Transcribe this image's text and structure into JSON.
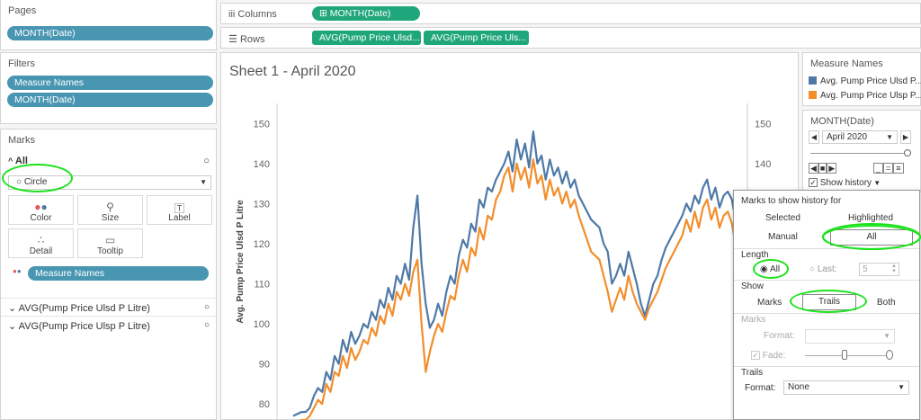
{
  "pages": {
    "title": "Pages",
    "pill": "MONTH(Date)"
  },
  "filters": {
    "title": "Filters",
    "pills": [
      "Measure Names",
      "MONTH(Date)"
    ]
  },
  "marks": {
    "title": "Marks",
    "all_label": "All",
    "type": "Circle",
    "cards": [
      {
        "label": "Color",
        "icon": "color-icon"
      },
      {
        "label": "Size",
        "icon": "size-icon"
      },
      {
        "label": "Label",
        "icon": "label-icon"
      },
      {
        "label": "Detail",
        "icon": "detail-icon"
      },
      {
        "label": "Tooltip",
        "icon": "tooltip-icon"
      }
    ],
    "color_pill": "Measure Names",
    "measures": [
      "AVG(Pump Price Ulsd P Litre)",
      "AVG(Pump Price Ulsp P Litre)"
    ]
  },
  "shelves": {
    "columns_label": "Columns",
    "columns_pill": "MONTH(Date)",
    "rows_label": "Rows",
    "rows_pills": [
      "AVG(Pump Price Ulsd...",
      "AVG(Pump Price Uls..."
    ]
  },
  "sheet": {
    "title": "Sheet 1 - April 2020"
  },
  "legend": {
    "title": "Measure Names",
    "items": [
      {
        "label": "Avg. Pump Price Ulsd P...",
        "color": "#4e79a7"
      },
      {
        "label": "Avg. Pump Price Ulsp P...",
        "color": "#f28e2b"
      }
    ]
  },
  "page_control": {
    "title": "MONTH(Date)",
    "value": "April 2020",
    "show_history": "Show history"
  },
  "history_popup": {
    "marks_for_label": "Marks to show history for",
    "selected": "Selected",
    "highlighted": "Highlighted",
    "manual": "Manual",
    "all": "All",
    "length_label": "Length",
    "length_all": "All",
    "length_last": "Last:",
    "last_value": "5",
    "show_label": "Show",
    "show_marks": "Marks",
    "show_trails": "Trails",
    "show_both": "Both",
    "marks_section": "Marks",
    "format_label": "Format:",
    "fade_label": "Fade:",
    "trails_section": "Trails",
    "trails_format_label": "Format:",
    "trails_format_value": "None"
  },
  "chart_data": {
    "type": "line",
    "title": "Sheet 1 - April 2020",
    "ylabel": "Avg. Pump Price Ulsd P Litre",
    "ylim": [
      76,
      155
    ],
    "yticks": [
      80,
      90,
      100,
      110,
      120,
      130,
      140,
      150
    ],
    "series": [
      {
        "color": "#4e79a7",
        "values": [
          77,
          77.5,
          78,
          78,
          79,
          82,
          84,
          83,
          88,
          86,
          92,
          90,
          96,
          93,
          98,
          95,
          97,
          100,
          99,
          103,
          101,
          106,
          104,
          109,
          106,
          112,
          110,
          115,
          111,
          124,
          132,
          115,
          105,
          99,
          101,
          105,
          102,
          108,
          112,
          110,
          117,
          121,
          119,
          125,
          123,
          131,
          129,
          134,
          133,
          136,
          138,
          140,
          143,
          138,
          146,
          141,
          145,
          139,
          148,
          140,
          142,
          136,
          141,
          137,
          139,
          135,
          138,
          134,
          136,
          132,
          130,
          128,
          126,
          125,
          124,
          120,
          118,
          110,
          112,
          115,
          112,
          118,
          114,
          110,
          105,
          102,
          106,
          110,
          112,
          116,
          119,
          121,
          123,
          125,
          127,
          130,
          128,
          132,
          130,
          134,
          136,
          131,
          134,
          129,
          132,
          133,
          131,
          125,
          116
        ]
      },
      {
        "color": "#f28e2b",
        "values": [
          75,
          75.5,
          76,
          76,
          77,
          79,
          81,
          80,
          85,
          83,
          88,
          87,
          92,
          89,
          94,
          91,
          93,
          96,
          95,
          99,
          97,
          102,
          100,
          105,
          102,
          108,
          106,
          110,
          107,
          113,
          116,
          100,
          88,
          93,
          97,
          100,
          98,
          103,
          107,
          106,
          112,
          116,
          113,
          119,
          117,
          124,
          121,
          127,
          126,
          131,
          133,
          137,
          139,
          133,
          140,
          136,
          139,
          134,
          141,
          135,
          137,
          131,
          136,
          132,
          134,
          130,
          133,
          129,
          131,
          127,
          124,
          121,
          118,
          117,
          116,
          112,
          108,
          103,
          106,
          109,
          106,
          112,
          108,
          105,
          103,
          101,
          104,
          106,
          108,
          111,
          114,
          116,
          118,
          120,
          122,
          126,
          123,
          128,
          124,
          129,
          131,
          126,
          129,
          124,
          127,
          128,
          125,
          119,
          109
        ]
      }
    ]
  }
}
